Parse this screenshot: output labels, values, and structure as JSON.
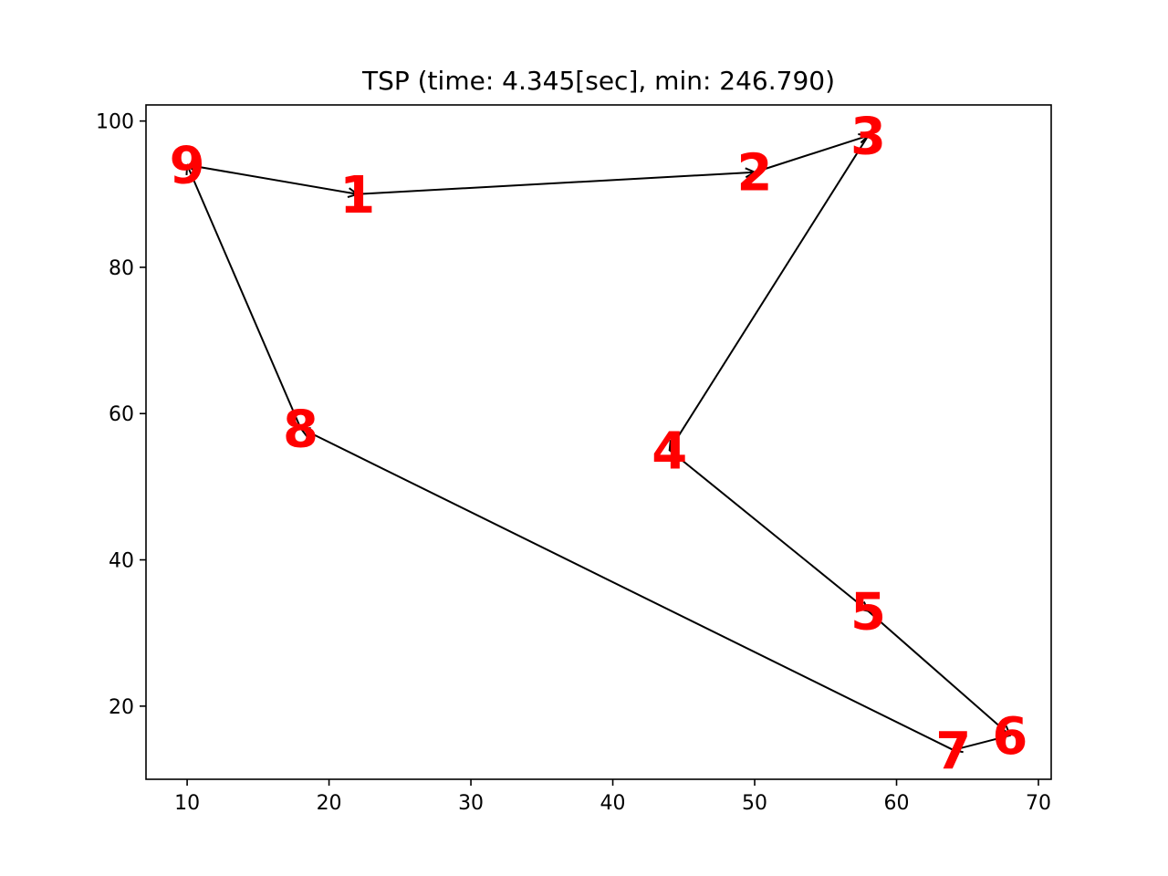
{
  "chart_data": {
    "type": "scatter",
    "title": "TSP (time: 4.345[sec], min: 246.790)",
    "xlabel": "",
    "ylabel": "",
    "xlim": [
      7.1,
      70.9
    ],
    "ylim": [
      10,
      102.2
    ],
    "xticks": [
      10,
      20,
      30,
      40,
      50,
      60,
      70
    ],
    "yticks": [
      20,
      40,
      60,
      80,
      100
    ],
    "grid": false,
    "legend": "none",
    "label_color": "#ff0000",
    "arrow_color": "#000000",
    "points": [
      {
        "label": "1",
        "x": 22,
        "y": 90
      },
      {
        "label": "2",
        "x": 50,
        "y": 93
      },
      {
        "label": "3",
        "x": 58,
        "y": 98
      },
      {
        "label": "4",
        "x": 44,
        "y": 55
      },
      {
        "label": "5",
        "x": 58,
        "y": 33
      },
      {
        "label": "6",
        "x": 68,
        "y": 16
      },
      {
        "label": "7",
        "x": 64,
        "y": 14
      },
      {
        "label": "8",
        "x": 18,
        "y": 58
      },
      {
        "label": "9",
        "x": 10,
        "y": 94
      }
    ],
    "route": [
      "9",
      "1",
      "2",
      "3",
      "4",
      "5",
      "6",
      "7",
      "8",
      "9"
    ]
  }
}
